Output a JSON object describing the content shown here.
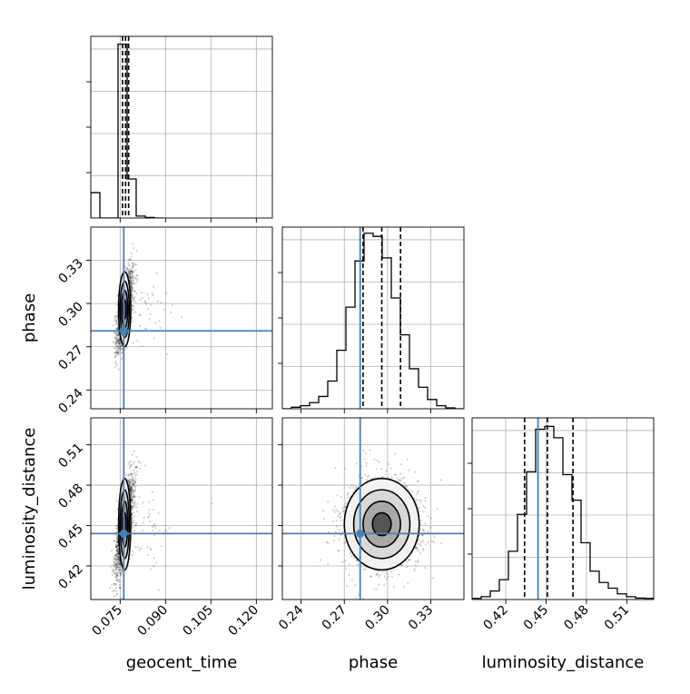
{
  "chart_data": {
    "type": "corner",
    "parameters": [
      "geocent_time",
      "phase",
      "luminosity_distance"
    ],
    "axis_labels": {
      "geocent_time": "geocent_time",
      "phase": "phase",
      "luminosity_distance": "luminosity_distance"
    },
    "ranges": {
      "geocent_time": [
        0.0653,
        0.1253
      ],
      "phase": [
        0.227,
        0.353
      ],
      "luminosity_distance": [
        0.395,
        0.53
      ]
    },
    "ticks": {
      "geocent_time": [
        "0.075",
        "0.090",
        "0.105",
        "0.120"
      ],
      "phase": [
        "0.24",
        "0.27",
        "0.30",
        "0.33"
      ],
      "luminosity_distance": [
        "0.42",
        "0.45",
        "0.48",
        "0.51"
      ]
    },
    "truths": {
      "geocent_time": 0.0762,
      "phase": 0.281,
      "luminosity_distance": 0.444
    },
    "truth_color": "#4682b4",
    "quantiles": {
      "geocent_time": [
        0.0758,
        0.0768,
        0.0778
      ],
      "phase": [
        0.283,
        0.296,
        0.309
      ],
      "luminosity_distance": [
        0.434,
        0.451,
        0.47
      ]
    },
    "histograms": {
      "geocent_time": {
        "edges": [
          0.0653,
          0.0683,
          0.0713,
          0.0743,
          0.0773,
          0.0803,
          0.0833,
          0.0863,
          0.0893
        ],
        "counts": [
          13,
          0,
          0,
          89,
          20,
          1,
          0.3,
          0
        ]
      },
      "phase": {
        "edges": [
          0.227,
          0.2333,
          0.2396,
          0.2459,
          0.2522,
          0.2585,
          0.2648,
          0.2711,
          0.2774,
          0.2837,
          0.29,
          0.2963,
          0.3026,
          0.3089,
          0.3152,
          0.3215,
          0.3278,
          0.3341,
          0.3404,
          0.3467,
          0.353
        ],
        "counts": [
          0,
          0.5,
          1,
          2,
          4,
          9,
          19,
          33,
          48,
          57,
          56,
          49,
          36,
          24,
          13,
          7,
          3,
          1,
          0.3,
          0
        ]
      },
      "luminosity_distance": {
        "edges": [
          0.395,
          0.40175,
          0.4085,
          0.41525,
          0.422,
          0.42875,
          0.4355,
          0.44225,
          0.449,
          0.45575,
          0.4625,
          0.46925,
          0.476,
          0.48275,
          0.4895,
          0.49625,
          0.503,
          0.50975,
          0.5165,
          0.52325,
          0.53
        ],
        "counts": [
          0.4,
          1,
          3,
          7,
          17,
          30,
          45,
          60,
          61,
          57,
          44,
          35,
          20,
          10,
          6,
          4,
          2,
          1,
          0.5,
          0.4
        ]
      }
    },
    "hist_ylim": {
      "geocent_time": [
        0,
        93
      ],
      "phase": [
        0,
        59
      ],
      "luminosity_distance": [
        0,
        64
      ]
    },
    "posterior_center": {
      "geocent_time": 0.0765,
      "phase": 0.296,
      "luminosity_distance": 0.451
    },
    "posterior_sigma": {
      "geocent_time": 0.001,
      "phase": 0.013,
      "luminosity_distance": 0.017
    },
    "gray_color": "#000000",
    "grid": true
  }
}
